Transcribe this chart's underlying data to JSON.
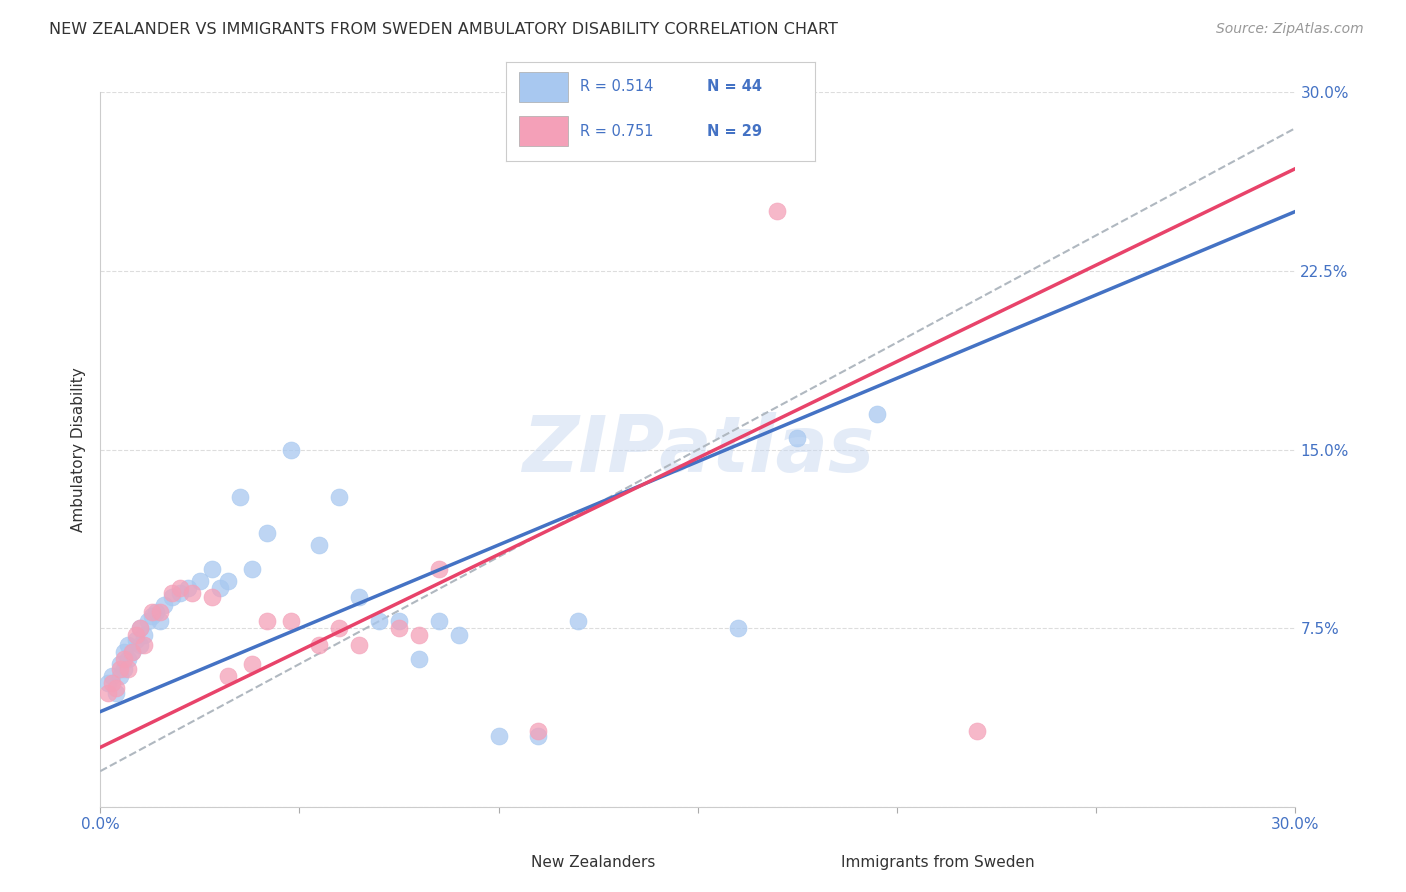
{
  "title": "NEW ZEALANDER VS IMMIGRANTS FROM SWEDEN AMBULATORY DISABILITY CORRELATION CHART",
  "source": "Source: ZipAtlas.com",
  "ylabel": "Ambulatory Disability",
  "xlim": [
    0.0,
    0.3
  ],
  "ylim": [
    0.0,
    0.3
  ],
  "xticks": [
    0.0,
    0.05,
    0.1,
    0.15,
    0.2,
    0.25,
    0.3
  ],
  "yticks": [
    0.0,
    0.075,
    0.15,
    0.225,
    0.3
  ],
  "color_nz": "#A8C8F0",
  "color_sw": "#F4A0B8",
  "color_nz_line": "#4472C4",
  "color_sw_line": "#E8436A",
  "color_dashed": "#B0B8C0",
  "nz_x": [
    0.002,
    0.003,
    0.004,
    0.005,
    0.005,
    0.006,
    0.006,
    0.007,
    0.007,
    0.008,
    0.009,
    0.01,
    0.01,
    0.011,
    0.012,
    0.013,
    0.014,
    0.015,
    0.016,
    0.018,
    0.02,
    0.022,
    0.025,
    0.028,
    0.03,
    0.032,
    0.035,
    0.038,
    0.042,
    0.048,
    0.055,
    0.06,
    0.065,
    0.07,
    0.075,
    0.08,
    0.085,
    0.09,
    0.1,
    0.11,
    0.12,
    0.16,
    0.175,
    0.195
  ],
  "nz_y": [
    0.052,
    0.055,
    0.048,
    0.055,
    0.06,
    0.058,
    0.065,
    0.062,
    0.068,
    0.065,
    0.07,
    0.068,
    0.075,
    0.072,
    0.078,
    0.08,
    0.082,
    0.078,
    0.085,
    0.088,
    0.09,
    0.092,
    0.095,
    0.1,
    0.092,
    0.095,
    0.13,
    0.1,
    0.115,
    0.15,
    0.11,
    0.13,
    0.088,
    0.078,
    0.078,
    0.062,
    0.078,
    0.072,
    0.03,
    0.03,
    0.078,
    0.075,
    0.155,
    0.165
  ],
  "sw_x": [
    0.002,
    0.003,
    0.004,
    0.005,
    0.006,
    0.007,
    0.008,
    0.009,
    0.01,
    0.011,
    0.013,
    0.015,
    0.018,
    0.02,
    0.023,
    0.028,
    0.032,
    0.038,
    0.042,
    0.048,
    0.055,
    0.06,
    0.065,
    0.075,
    0.08,
    0.085,
    0.11,
    0.17,
    0.22
  ],
  "sw_y": [
    0.048,
    0.052,
    0.05,
    0.058,
    0.062,
    0.058,
    0.065,
    0.072,
    0.075,
    0.068,
    0.082,
    0.082,
    0.09,
    0.092,
    0.09,
    0.088,
    0.055,
    0.06,
    0.078,
    0.078,
    0.068,
    0.075,
    0.068,
    0.075,
    0.072,
    0.1,
    0.032,
    0.25,
    0.032
  ],
  "watermark": "ZIPatlas",
  "background_color": "#FFFFFF",
  "grid_color": "#DDDDDD",
  "legend_r1": "R = 0.514",
  "legend_n1": "N = 44",
  "legend_r2": "R = 0.751",
  "legend_n2": "N = 29"
}
